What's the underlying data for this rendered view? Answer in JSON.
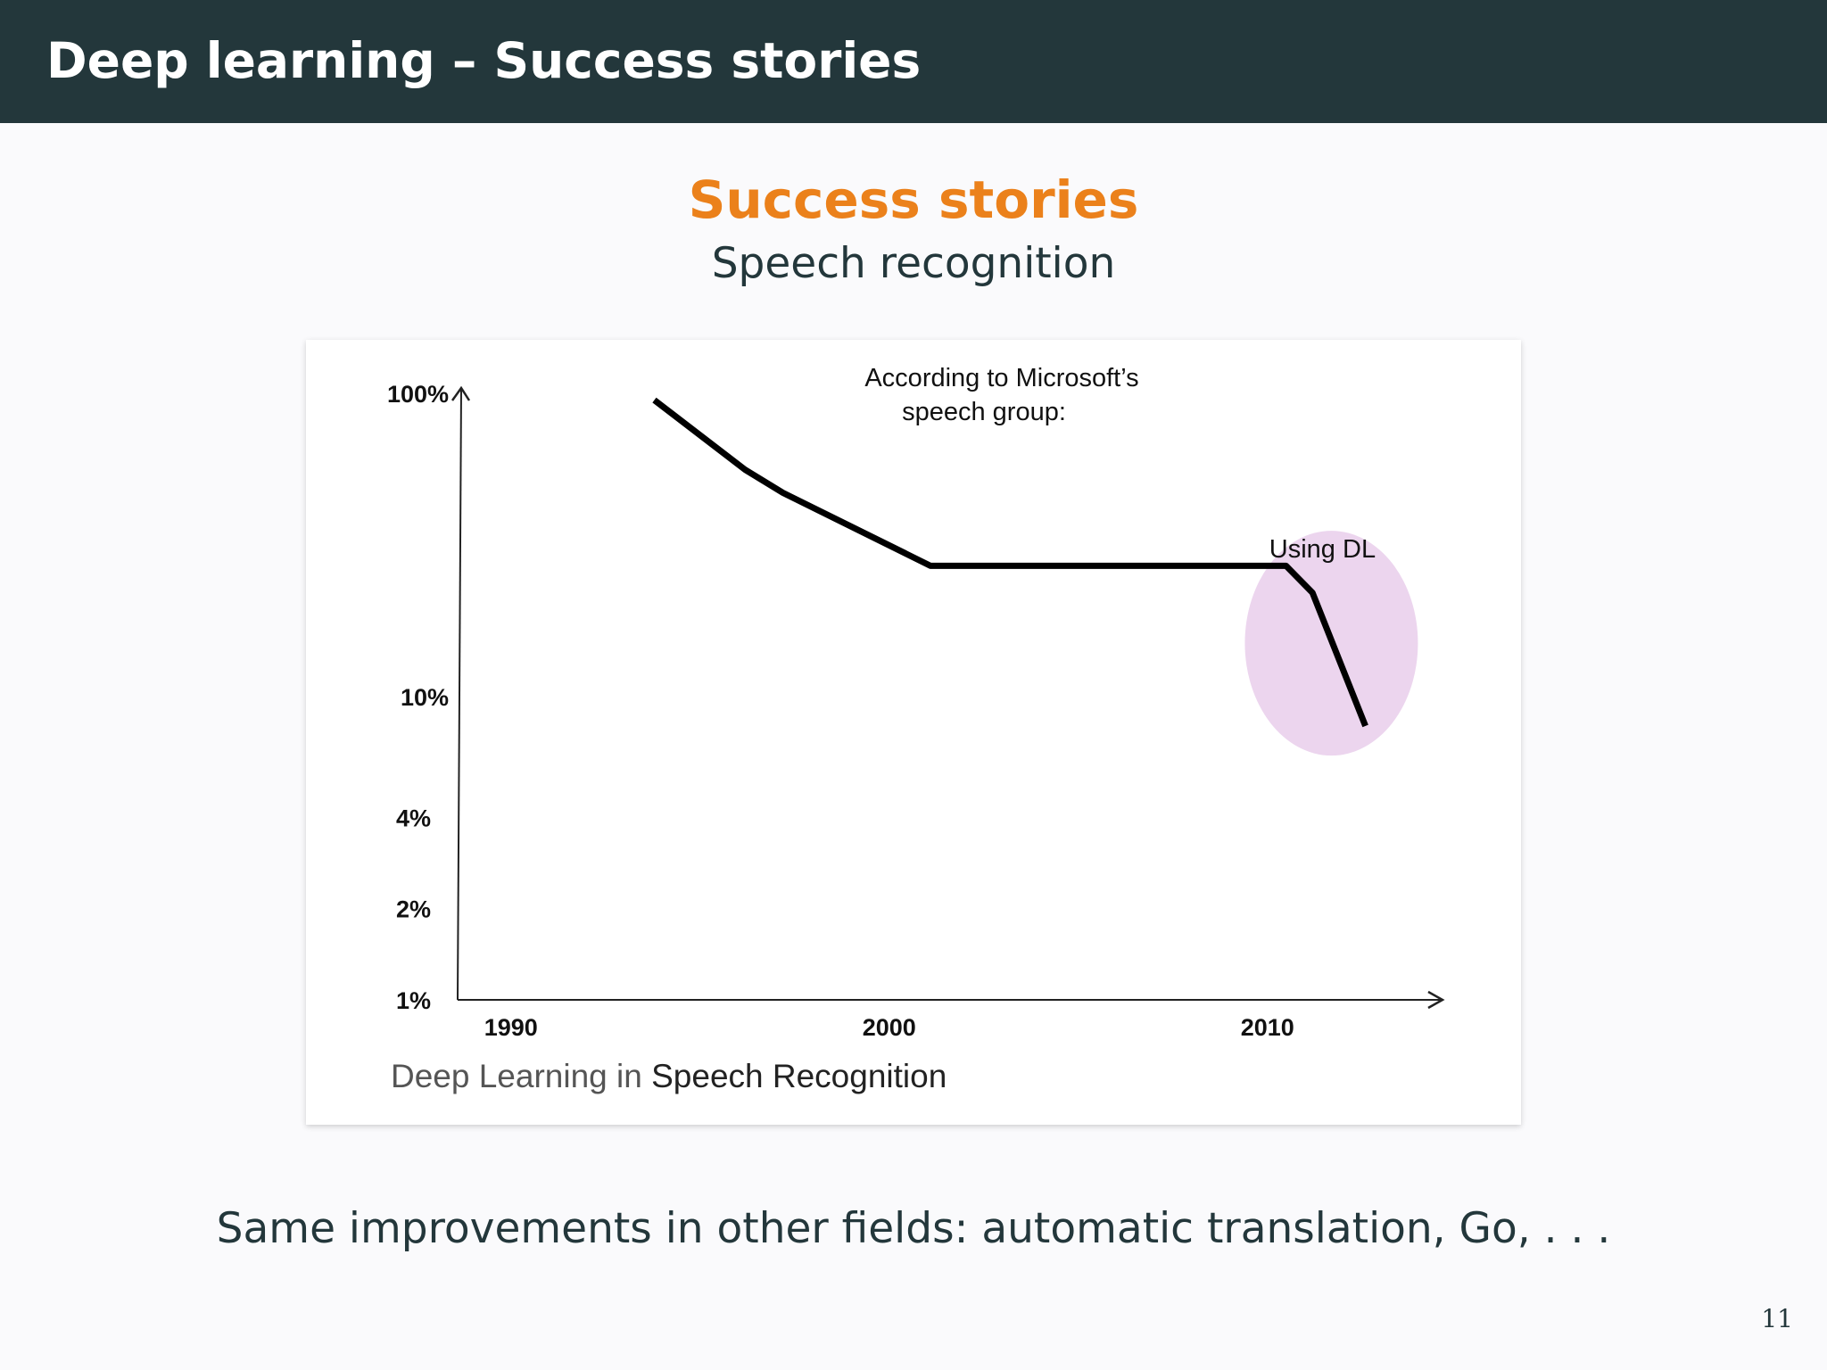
{
  "header": {
    "title": "Deep learning – Success stories"
  },
  "section": {
    "title": "Success stories",
    "subtitle": "Speech recognition"
  },
  "chart_data": {
    "type": "line",
    "annotation": [
      "According to Microsoft’s",
      "speech group:"
    ],
    "highlight_label": "Using DL",
    "highlight_color": "#ecd5ee",
    "line_color": "#000000",
    "x_ticks": [
      {
        "label": "1990",
        "value": 1990
      },
      {
        "label": "2000",
        "value": 2000
      },
      {
        "label": "2010",
        "value": 2010
      }
    ],
    "y_ticks": [
      {
        "label": "100%",
        "value": 100
      },
      {
        "label": "10%",
        "value": 10
      },
      {
        "label": "4%",
        "value": 4
      },
      {
        "label": "2%",
        "value": 2
      },
      {
        "label": "1%",
        "value": 1
      }
    ],
    "y_scale": "log",
    "xlim": [
      1988,
      2013
    ],
    "ylim": [
      1,
      100
    ],
    "series": [
      {
        "points": [
          {
            "x": 1993.2,
            "y": 95
          },
          {
            "x": 1995.6,
            "y": 56
          },
          {
            "x": 1996.6,
            "y": 47
          },
          {
            "x": 2000.5,
            "y": 27
          },
          {
            "x": 2009.9,
            "y": 27
          },
          {
            "x": 2010.6,
            "y": 22
          },
          {
            "x": 2012.0,
            "y": 8
          }
        ]
      }
    ]
  },
  "caption": {
    "part1": "Deep Learning in ",
    "part2": "Speech Recognition"
  },
  "footer": {
    "text": "Same improvements in other fields: automatic translation, Go, . . ."
  },
  "page": {
    "number": "11"
  }
}
